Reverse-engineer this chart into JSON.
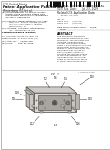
{
  "page_bg": "#ffffff",
  "barcode_color": "#111111",
  "text_dark": "#222222",
  "text_mid": "#444444",
  "diagram_bg": "#f8f8f8",
  "box_face": "#e0ddd8",
  "box_top": "#d0cdc8",
  "box_side": "#c8c5c0",
  "box_inner": "#b8b5b0",
  "box_edge": "#555555",
  "leader_color": "#333333"
}
